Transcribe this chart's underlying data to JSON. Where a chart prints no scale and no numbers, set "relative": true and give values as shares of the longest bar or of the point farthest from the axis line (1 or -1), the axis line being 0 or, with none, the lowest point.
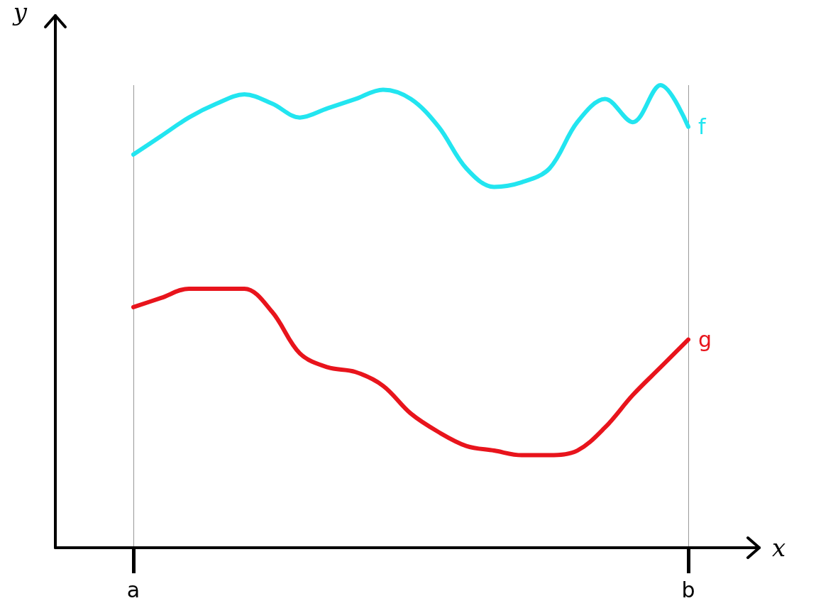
{
  "chart_data": {
    "type": "line",
    "xlabel": "x",
    "ylabel": "y",
    "relative": true,
    "categories": [
      "a",
      null,
      null,
      null,
      null,
      null,
      null,
      null,
      null,
      null,
      null,
      null,
      null,
      null,
      null,
      null,
      null,
      null,
      null,
      null,
      "b"
    ],
    "series": [
      {
        "name": "f",
        "color": "#22e5f0",
        "values": [
          0.85,
          0.89,
          0.93,
          0.96,
          0.98,
          0.96,
          0.93,
          0.95,
          0.97,
          0.99,
          0.97,
          0.91,
          0.82,
          0.78,
          0.79,
          0.82,
          0.92,
          0.97,
          0.92,
          1.0,
          0.91
        ]
      },
      {
        "name": "g",
        "color": "#e8141c",
        "values": [
          0.52,
          0.54,
          0.56,
          0.56,
          0.56,
          0.51,
          0.42,
          0.39,
          0.38,
          0.35,
          0.29,
          0.25,
          0.22,
          0.21,
          0.2,
          0.2,
          0.21,
          0.26,
          0.33,
          0.39,
          0.45
        ]
      }
    ],
    "grid": "x",
    "marker": "none",
    "line_style": "solid",
    "legend": false
  }
}
